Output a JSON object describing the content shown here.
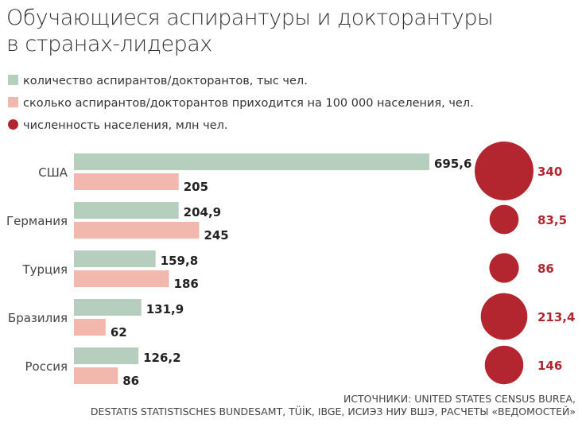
{
  "title_line1": "Обучающиеся аспирантуры и докторантуры",
  "title_line2": "в странах-лидерах",
  "colors": {
    "students": "#b6cebe",
    "per100k": "#f2b8ae",
    "population": "#b3262f"
  },
  "chart_data": {
    "type": "bar",
    "categories": [
      "США",
      "Германия",
      "Турция",
      "Бразилия",
      "Россия"
    ],
    "series": [
      {
        "name": "количество аспирантов/докторантов, тыс чел.",
        "values": [
          695.6,
          204.9,
          159.8,
          131.9,
          126.2
        ],
        "labels": [
          "695,6",
          "204,9",
          "159,8",
          "131,9",
          "126,2"
        ]
      },
      {
        "name": "сколько аспирантов/докторантов приходится на 100 000 населения, чел.",
        "values": [
          205,
          245,
          186,
          62,
          86
        ],
        "labels": [
          "205",
          "245",
          "186",
          "62",
          "86"
        ]
      },
      {
        "name": "численность населения, млн чел.",
        "type": "bubble",
        "values": [
          340,
          83.5,
          86,
          213.4,
          146
        ],
        "labels": [
          "340",
          "83,5",
          "86",
          "213,4",
          "146"
        ]
      }
    ],
    "legend": "top-left"
  },
  "source_line1": "ИСТОЧНИКИ: UNITED STATES CENSUS BUREA,",
  "source_line2": "DESTATIS STATISTISCHES BUNDESAMT, TÜİK, IBGE, ИСИЭЗ НИУ ВШЭ, РАСЧЕТЫ «ВЕДОМОСТЕЙ»"
}
